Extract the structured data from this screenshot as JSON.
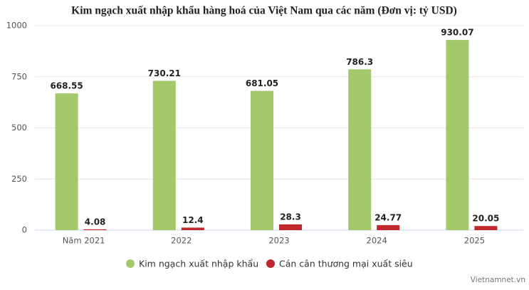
{
  "chart_data": {
    "type": "bar",
    "title": "Kim ngạch xuất nhập khẩu hàng hoá của Việt Nam qua các năm (Đơn vị: tỷ USD)",
    "categories": [
      "Năm 2021",
      "2022",
      "2023",
      "2024",
      "2025"
    ],
    "series": [
      {
        "name": "Kim ngạch xuất nhập khẩu",
        "color": "#a3c96a",
        "values": [
          668.55,
          730.21,
          681.05,
          786.3,
          930.07
        ]
      },
      {
        "name": "Cán cân thương mại xuất siêu",
        "color": "#c0272d",
        "values": [
          4.08,
          12.4,
          28.3,
          24.77,
          20.05
        ]
      }
    ],
    "ylim": [
      0,
      1000
    ],
    "yticks": [
      0,
      250,
      500,
      750,
      1000
    ],
    "grid": true,
    "legend": "bottom",
    "source": "Vietnamnet.vn"
  }
}
